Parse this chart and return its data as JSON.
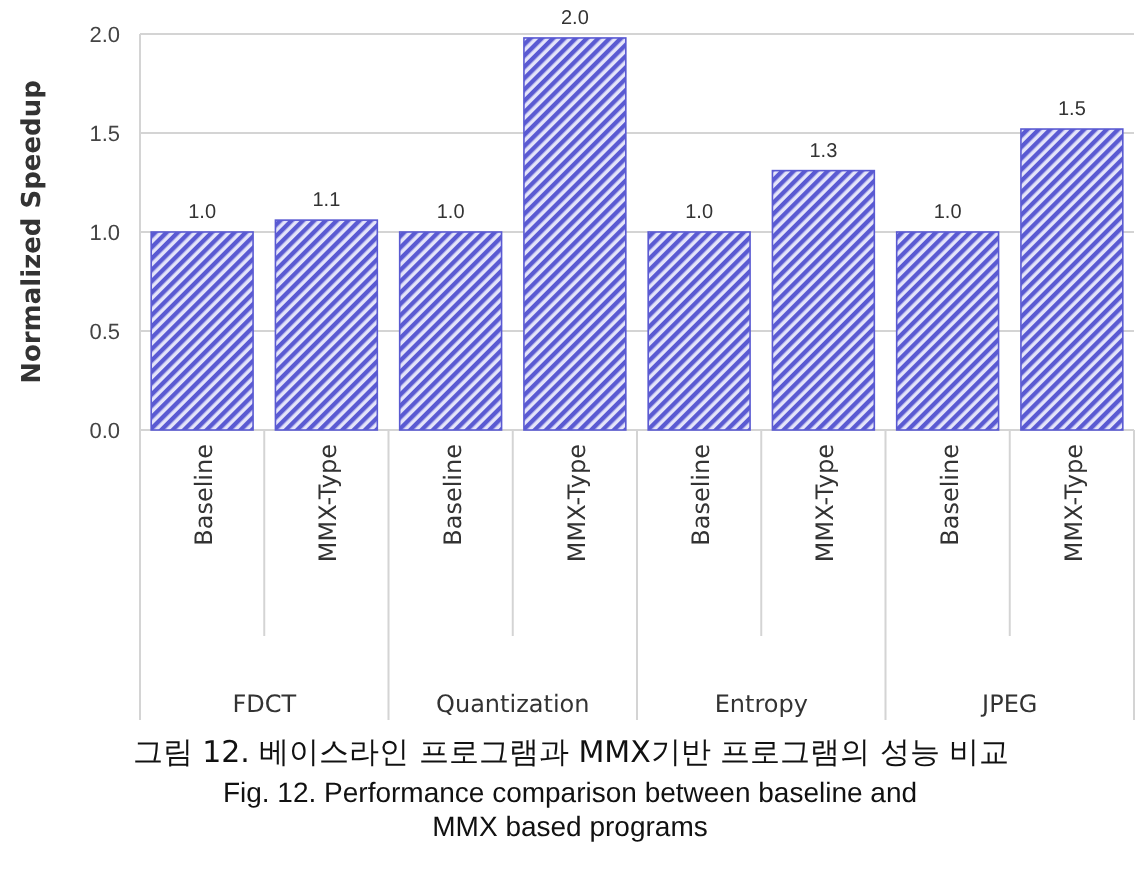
{
  "chart_data": {
    "type": "bar",
    "title": "그림 12. 베이스라인 프로그램과 MMX기반 프로그램의 성능 비교",
    "subtitle": "Fig. 12. Performance comparison between baseline and MMX based programs",
    "ylabel": "Normalized Speedup",
    "categories": [
      "Baseline",
      "MMX-Type",
      "Baseline",
      "MMX-Type",
      "Baseline",
      "MMX-Type",
      "Baseline",
      "MMX-Type"
    ],
    "annotations": [
      "FDCT",
      "Quantization",
      "Entropy",
      "JPEG"
    ],
    "values": [
      1.0,
      1.06,
      1.0,
      1.98,
      1.0,
      1.31,
      1.0,
      1.52
    ],
    "value_labels": [
      "1.0",
      "1.1",
      "1.0",
      "2.0",
      "1.0",
      "1.3",
      "1.0",
      "1.5"
    ],
    "color": "#5a5ad2",
    "ylim": [
      0,
      2.0
    ],
    "yticks": [
      {
        "value": 0,
        "label": "0.0"
      },
      {
        "value": 0.5,
        "label": "0.5"
      },
      {
        "value": 1,
        "label": "1.0"
      },
      {
        "value": 1.5,
        "label": "1.5"
      },
      {
        "value": 2,
        "label": "2.0"
      }
    ],
    "grid": "y"
  }
}
